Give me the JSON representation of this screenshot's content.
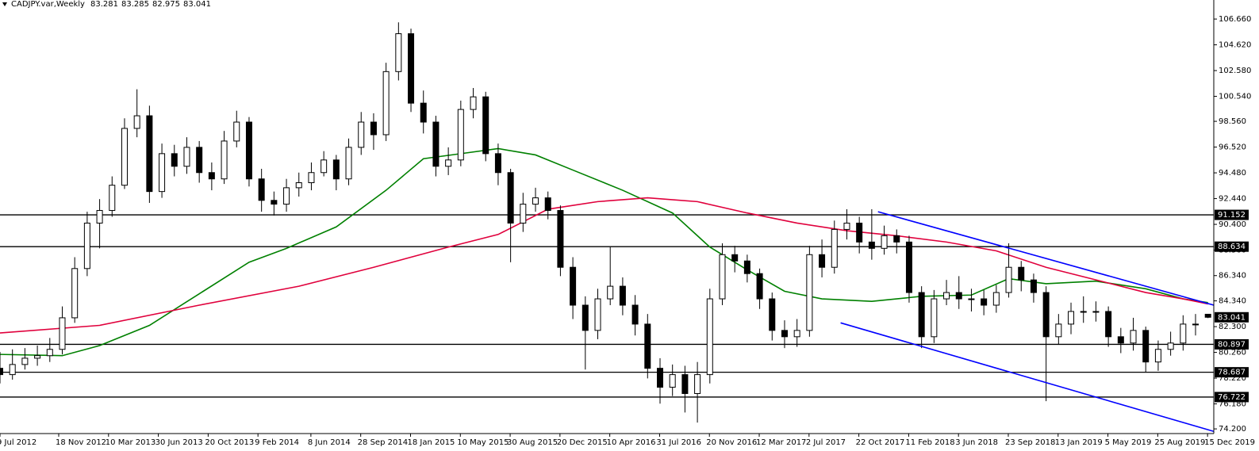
{
  "chart_data": {
    "type": "candlestick",
    "title": "CADJPY.var,Weekly",
    "x": [
      "2012-07-09",
      "2012-08-06",
      "2012-09-03",
      "2012-10-01",
      "2012-10-29",
      "2012-11-26",
      "2012-12-24",
      "2013-01-21",
      "2013-02-18",
      "2013-03-18",
      "2013-04-15",
      "2013-05-13",
      "2013-06-10",
      "2013-07-08",
      "2013-08-05",
      "2013-09-02",
      "2013-09-30",
      "2013-10-28",
      "2013-11-25",
      "2013-12-23",
      "2014-01-20",
      "2014-02-17",
      "2014-03-17",
      "2014-04-14",
      "2014-05-12",
      "2014-06-09",
      "2014-07-07",
      "2014-08-04",
      "2014-09-01",
      "2014-09-29",
      "2014-10-27",
      "2014-11-24",
      "2014-12-22",
      "2015-01-19",
      "2015-02-16",
      "2015-03-16",
      "2015-04-13",
      "2015-05-11",
      "2015-06-08",
      "2015-07-06",
      "2015-08-03",
      "2015-08-31",
      "2015-09-28",
      "2015-10-26",
      "2015-11-23",
      "2015-12-21",
      "2016-01-18",
      "2016-02-15",
      "2016-03-14",
      "2016-04-11",
      "2016-05-09",
      "2016-06-06",
      "2016-07-04",
      "2016-08-01",
      "2016-08-29",
      "2016-09-26",
      "2016-10-24",
      "2016-11-21",
      "2016-12-19",
      "2017-01-16",
      "2017-02-13",
      "2017-03-13",
      "2017-04-10",
      "2017-05-08",
      "2017-06-05",
      "2017-07-03",
      "2017-07-31",
      "2017-08-28",
      "2017-09-25",
      "2017-10-23",
      "2017-11-20",
      "2017-12-18",
      "2018-01-15",
      "2018-02-12",
      "2018-03-12",
      "2018-04-09",
      "2018-05-07",
      "2018-06-04",
      "2018-07-02",
      "2018-07-30",
      "2018-08-27",
      "2018-09-24",
      "2018-10-22",
      "2018-11-19",
      "2018-12-17",
      "2019-01-14",
      "2019-02-11",
      "2019-03-11",
      "2019-04-08",
      "2019-05-06",
      "2019-06-03",
      "2019-07-01",
      "2019-07-29",
      "2019-08-26",
      "2019-09-23",
      "2019-10-21",
      "2019-11-18",
      "2019-12-16"
    ],
    "open": [
      79.0,
      78.5,
      79.3,
      79.8,
      80.0,
      80.5,
      83.0,
      86.9,
      90.5,
      91.5,
      93.5,
      98.0,
      99.0,
      93.0,
      96.0,
      95.0,
      96.5,
      94.5,
      94.0,
      97.0,
      98.5,
      94.0,
      92.3,
      92.0,
      93.3,
      93.7,
      94.5,
      95.5,
      94.0,
      96.5,
      98.5,
      97.5,
      102.5,
      105.5,
      100.0,
      98.5,
      95.0,
      95.5,
      99.5,
      100.5,
      96.0,
      94.5,
      90.5,
      92.0,
      92.5,
      91.5,
      87.0,
      84.0,
      82.0,
      84.5,
      85.5,
      84.0,
      82.5,
      79.0,
      77.5,
      78.5,
      77.0,
      78.5,
      84.5,
      88.0,
      87.5,
      86.5,
      84.5,
      82.0,
      81.5,
      82.0,
      88.0,
      87.0,
      90.0,
      90.5,
      89.0,
      88.5,
      89.5,
      89.0,
      85.0,
      81.5,
      84.5,
      85.0,
      84.5,
      84.5,
      84.0,
      85.0,
      87.0,
      86.0,
      85.0,
      81.5,
      82.5,
      83.5,
      83.5,
      83.5,
      81.5,
      81.0,
      82.0,
      79.5,
      80.5,
      81.0,
      82.5,
      83.281
    ],
    "high": [
      80.3,
      80.5,
      80.6,
      80.8,
      81.4,
      83.9,
      87.8,
      91.4,
      92.4,
      94.2,
      98.8,
      101.1,
      99.8,
      96.8,
      96.7,
      97.3,
      97.0,
      95.3,
      97.8,
      99.4,
      98.9,
      94.8,
      93.0,
      94.0,
      94.5,
      95.3,
      96.2,
      95.9,
      97.2,
      99.3,
      99.2,
      103.2,
      106.4,
      105.9,
      101.0,
      99.0,
      96.5,
      100.2,
      101.2,
      100.9,
      96.8,
      94.8,
      92.9,
      93.3,
      93.0,
      91.9,
      87.8,
      84.7,
      85.3,
      88.6,
      86.2,
      84.8,
      83.3,
      79.8,
      79.3,
      79.2,
      79.5,
      85.3,
      88.9,
      88.7,
      88.0,
      86.9,
      85.0,
      82.8,
      82.9,
      88.7,
      89.2,
      90.7,
      91.6,
      91.0,
      91.6,
      90.3,
      90.0,
      89.5,
      85.5,
      85.2,
      86.0,
      86.3,
      85.3,
      85.2,
      85.6,
      88.9,
      87.5,
      86.5,
      85.5,
      83.3,
      84.2,
      84.7,
      84.3,
      83.9,
      82.2,
      83.0,
      82.3,
      81.2,
      81.9,
      83.2,
      83.3,
      83.285
    ],
    "low": [
      77.8,
      78.1,
      78.9,
      79.2,
      79.5,
      80.1,
      82.6,
      86.3,
      88.5,
      91.0,
      93.2,
      97.3,
      92.1,
      92.5,
      94.2,
      94.4,
      93.7,
      93.1,
      93.6,
      96.5,
      93.4,
      91.4,
      91.1,
      91.4,
      92.6,
      93.1,
      94.2,
      93.1,
      93.5,
      95.9,
      96.3,
      97.0,
      101.8,
      99.3,
      97.6,
      94.2,
      94.3,
      95.0,
      98.8,
      95.4,
      93.5,
      87.4,
      89.8,
      91.4,
      90.8,
      86.3,
      82.9,
      78.9,
      81.3,
      84.0,
      83.2,
      81.6,
      78.2,
      76.2,
      76.8,
      75.5,
      74.7,
      77.8,
      84.0,
      86.6,
      85.8,
      83.7,
      81.2,
      80.6,
      80.7,
      81.5,
      86.2,
      86.5,
      89.2,
      88.1,
      87.6,
      88.0,
      88.1,
      84.2,
      80.6,
      81.0,
      84.0,
      83.7,
      83.5,
      83.2,
      83.4,
      84.6,
      85.1,
      84.2,
      76.4,
      80.9,
      81.7,
      82.6,
      82.7,
      80.7,
      80.2,
      80.4,
      78.7,
      78.8,
      80.0,
      80.4,
      81.6,
      82.975
    ],
    "close": [
      78.5,
      79.3,
      79.8,
      80.0,
      80.5,
      83.0,
      86.9,
      90.5,
      91.5,
      93.5,
      98.0,
      99.0,
      93.0,
      96.0,
      95.0,
      96.5,
      94.5,
      94.0,
      97.0,
      98.5,
      94.0,
      92.3,
      92.0,
      93.3,
      93.7,
      94.5,
      95.5,
      94.0,
      96.5,
      98.5,
      97.5,
      102.5,
      105.5,
      100.0,
      98.5,
      95.0,
      95.5,
      99.5,
      100.5,
      96.0,
      94.5,
      90.5,
      92.0,
      92.5,
      91.5,
      87.0,
      84.0,
      82.0,
      84.5,
      85.5,
      84.0,
      82.5,
      79.0,
      77.5,
      78.5,
      77.0,
      78.5,
      84.5,
      88.0,
      87.5,
      86.5,
      84.5,
      82.0,
      81.5,
      82.0,
      88.0,
      87.0,
      90.0,
      90.5,
      89.0,
      88.5,
      89.5,
      89.0,
      85.0,
      81.5,
      84.5,
      85.0,
      84.5,
      84.5,
      84.0,
      85.0,
      87.0,
      86.0,
      85.0,
      81.5,
      82.5,
      83.5,
      83.5,
      83.5,
      81.5,
      81.0,
      82.0,
      79.5,
      80.5,
      81.0,
      82.5,
      82.5,
      83.041
    ],
    "up_color": "#ffffff",
    "down_color": "#000000",
    "wick_color": "#000000",
    "moving_averages": [
      {
        "color": "#008000",
        "x": [
          "2012-07-09",
          "2012-11-26",
          "2013-02-18",
          "2013-06-10",
          "2013-09-30",
          "2014-01-20",
          "2014-04-14",
          "2014-08-04",
          "2014-11-24",
          "2015-02-16",
          "2015-05-11",
          "2015-08-03",
          "2015-10-26",
          "2016-01-18",
          "2016-05-09",
          "2016-08-29",
          "2016-11-21",
          "2017-02-13",
          "2017-05-08",
          "2017-07-31",
          "2017-11-20",
          "2018-03-12",
          "2018-07-02",
          "2018-09-24",
          "2018-12-17",
          "2019-04-08",
          "2019-07-29",
          "2019-10-21",
          "2019-12-16"
        ],
        "values": [
          80.1,
          80.0,
          80.8,
          82.4,
          84.9,
          87.4,
          88.5,
          90.2,
          93.1,
          95.6,
          96.0,
          96.4,
          95.9,
          94.7,
          93.1,
          91.3,
          88.6,
          86.8,
          85.1,
          84.5,
          84.3,
          84.7,
          84.8,
          86.1,
          85.7,
          85.9,
          85.3,
          84.5,
          84.2
        ]
      },
      {
        "color": "#e0003c",
        "x": [
          "2012-07-09",
          "2013-02-18",
          "2013-09-30",
          "2014-05-12",
          "2014-10-27",
          "2015-04-13",
          "2015-08-03",
          "2015-11-23",
          "2016-03-14",
          "2016-07-04",
          "2016-10-24",
          "2017-02-13",
          "2017-06-05",
          "2017-09-25",
          "2018-01-15",
          "2018-05-07",
          "2018-08-27",
          "2018-12-17",
          "2019-04-08",
          "2019-07-29",
          "2019-10-21",
          "2019-12-16"
        ],
        "values": [
          81.8,
          82.4,
          84.0,
          85.5,
          87.0,
          88.6,
          89.6,
          91.6,
          92.2,
          92.5,
          92.2,
          91.3,
          90.5,
          89.9,
          89.5,
          89.0,
          88.3,
          87.0,
          86.0,
          85.0,
          84.5,
          84.1
        ]
      }
    ],
    "trendlines": [
      {
        "color": "#0000ff",
        "x": [
          "2017-12-04",
          "2019-12-29"
        ],
        "y": [
          91.4,
          84.0
        ]
      },
      {
        "color": "#0000ff",
        "x": [
          "2017-09-11",
          "2019-12-29"
        ],
        "y": [
          82.6,
          74.0
        ]
      }
    ],
    "levels": [
      91.152,
      88.634,
      80.897,
      78.687,
      76.722
    ],
    "level_color": "#000000",
    "xlim": [
      "2012-07-09",
      "2019-12-29"
    ],
    "ylim": [
      73.83,
      108.17
    ],
    "yticks": [
      {
        "value": 106.66,
        "label": "106.660"
      },
      {
        "value": 104.62,
        "label": "104.620"
      },
      {
        "value": 102.58,
        "label": "102.580"
      },
      {
        "value": 100.54,
        "label": "100.540"
      },
      {
        "value": 98.56,
        "label": "98.560"
      },
      {
        "value": 96.52,
        "label": "96.520"
      },
      {
        "value": 94.48,
        "label": "94.480"
      },
      {
        "value": 92.44,
        "label": "92.440"
      },
      {
        "value": 90.4,
        "label": "90.400"
      },
      {
        "value": 88.36,
        "label": "88.360"
      },
      {
        "value": 86.34,
        "label": "86.340"
      },
      {
        "value": 84.34,
        "label": "84.340"
      },
      {
        "value": 82.3,
        "label": "82.300"
      },
      {
        "value": 80.26,
        "label": "80.260"
      },
      {
        "value": 78.22,
        "label": "78.220"
      },
      {
        "value": 76.18,
        "label": "76.180"
      },
      {
        "value": 74.2,
        "label": "74.200"
      }
    ],
    "xticks": [
      {
        "value": "2012-07-09",
        "label": "9 Jul 2012"
      },
      {
        "value": "2012-11-18",
        "label": "18 Nov 2012"
      },
      {
        "value": "2013-03-10",
        "label": "10 Mar 2013"
      },
      {
        "value": "2013-06-30",
        "label": "30 Jun 2013"
      },
      {
        "value": "2013-10-20",
        "label": "20 Oct 2013"
      },
      {
        "value": "2014-02-09",
        "label": "9 Feb 2014"
      },
      {
        "value": "2014-06-08",
        "label": "8 Jun 2014"
      },
      {
        "value": "2014-09-28",
        "label": "28 Sep 2014"
      },
      {
        "value": "2015-01-18",
        "label": "18 Jan 2015"
      },
      {
        "value": "2015-05-10",
        "label": "10 May 2015"
      },
      {
        "value": "2015-08-30",
        "label": "30 Aug 2015"
      },
      {
        "value": "2015-12-20",
        "label": "20 Dec 2015"
      },
      {
        "value": "2016-04-10",
        "label": "10 Apr 2016"
      },
      {
        "value": "2016-07-31",
        "label": "31 Jul 2016"
      },
      {
        "value": "2016-11-20",
        "label": "20 Nov 2016"
      },
      {
        "value": "2017-03-12",
        "label": "12 Mar 2017"
      },
      {
        "value": "2017-07-02",
        "label": "2 Jul 2017"
      },
      {
        "value": "2017-10-22",
        "label": "22 Oct 2017"
      },
      {
        "value": "2018-02-11",
        "label": "11 Feb 2018"
      },
      {
        "value": "2018-06-03",
        "label": "3 Jun 2018"
      },
      {
        "value": "2018-09-23",
        "label": "23 Sep 2018"
      },
      {
        "value": "2019-01-13",
        "label": "13 Jan 2019"
      },
      {
        "value": "2019-05-05",
        "label": "5 May 2019"
      },
      {
        "value": "2019-08-25",
        "label": "25 Aug 2019"
      },
      {
        "value": "2019-12-15",
        "label": "15 Dec 2019"
      }
    ]
  }
}
